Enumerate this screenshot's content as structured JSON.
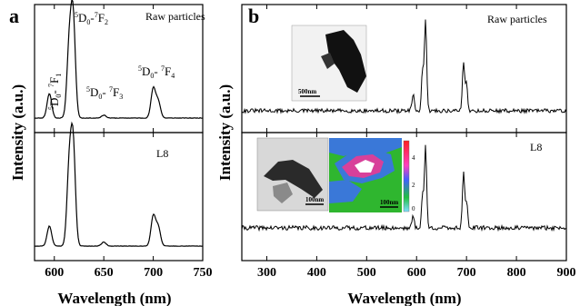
{
  "chart_data": [
    {
      "type": "line",
      "panel": "a",
      "xlim": [
        580,
        750
      ],
      "xticks": [
        600,
        650,
        700,
        750
      ],
      "xlabel": "Wavelength (nm)",
      "ylabel": "Intensity (a.u.)",
      "subplots": [
        {
          "label": "Raw particles",
          "peaks": [
            {
              "x": 595,
              "y": 0.25
            },
            {
              "x": 615,
              "y": 0.7
            },
            {
              "x": 619,
              "y": 1.0
            },
            {
              "x": 650,
              "y": 0.03
            },
            {
              "x": 700,
              "y": 0.3
            },
            {
              "x": 705,
              "y": 0.17
            }
          ],
          "annotations": [
            {
              "base": "5",
              "mid": "D",
              "sub": "0",
              "sep": "- ",
              "sup": "7",
              "end": "F",
              "sub2": "1"
            },
            {
              "base": "5",
              "mid": "D",
              "sub": "0",
              "sep": "-",
              "sup": "7",
              "end": "F",
              "sub2": "2"
            },
            {
              "base": "5",
              "mid": "D",
              "sub": "0",
              "sep": "- ",
              "sup": "7",
              "end": "F",
              "sub2": "3"
            },
            {
              "base": "5",
              "mid": "D",
              "sub": "0",
              "sep": "- ",
              "sup": "7",
              "end": "F",
              "sub2": "4"
            }
          ]
        },
        {
          "label": "L8",
          "peaks": [
            {
              "x": 595,
              "y": 0.2
            },
            {
              "x": 615,
              "y": 0.75
            },
            {
              "x": 619,
              "y": 1.0
            },
            {
              "x": 650,
              "y": 0.04
            },
            {
              "x": 700,
              "y": 0.3
            },
            {
              "x": 705,
              "y": 0.19
            }
          ]
        }
      ]
    },
    {
      "type": "line",
      "panel": "b",
      "xlim": [
        250,
        900
      ],
      "xticks": [
        300,
        400,
        500,
        600,
        700,
        800,
        900
      ],
      "xlabel": "Wavelength (nm)",
      "ylabel": "Intensity (a.u.)",
      "subplots": [
        {
          "label": "Raw particles",
          "peaks": [
            {
              "x": 593,
              "y": 0.18
            },
            {
              "x": 612,
              "y": 0.45
            },
            {
              "x": 618,
              "y": 1.0
            },
            {
              "x": 694,
              "y": 0.55
            },
            {
              "x": 700,
              "y": 0.3
            }
          ],
          "inset_scale": "500nm"
        },
        {
          "label": "L8",
          "peaks": [
            {
              "x": 593,
              "y": 0.15
            },
            {
              "x": 612,
              "y": 0.4
            },
            {
              "x": 618,
              "y": 1.0
            },
            {
              "x": 694,
              "y": 0.7
            },
            {
              "x": 700,
              "y": 0.33
            }
          ],
          "inset_scales": [
            "100nm",
            "100nm"
          ],
          "colorbar_ticks": [
            "4",
            "2",
            "0"
          ]
        }
      ]
    }
  ]
}
